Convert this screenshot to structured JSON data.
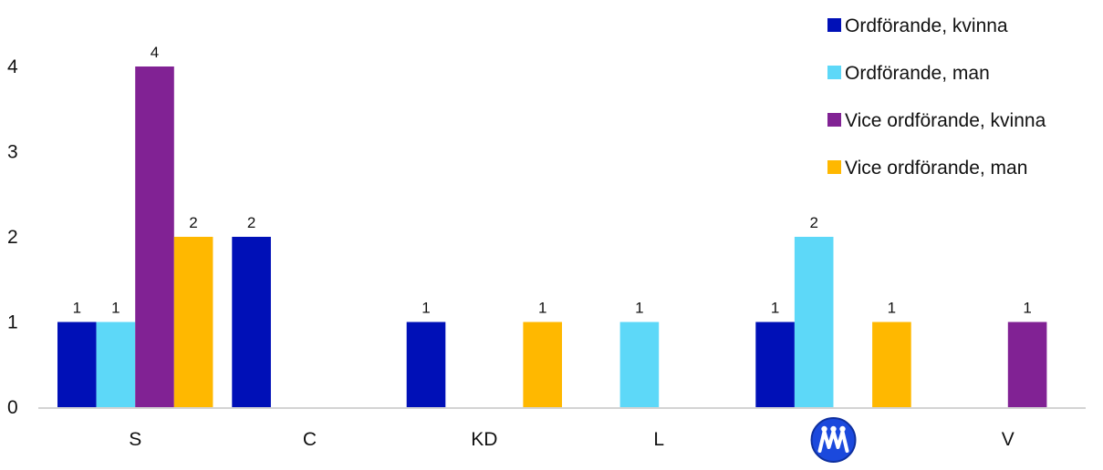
{
  "chart_data": {
    "type": "bar",
    "title": "",
    "xlabel": "",
    "ylabel": "",
    "ylim": [
      0,
      4
    ],
    "yticks": [
      0,
      1,
      2,
      3,
      4
    ],
    "grid": false,
    "legend_position": "top-right",
    "categories": [
      "S",
      "C",
      "KD",
      "L",
      "M",
      "V"
    ],
    "category_icons": [
      "",
      "",
      "",
      "",
      "moderaterna-logo-icon",
      ""
    ],
    "series": [
      {
        "name": "Ordförande, kvinna",
        "color": "#0010B7",
        "values": [
          1,
          2,
          1,
          0,
          1,
          0
        ]
      },
      {
        "name": "Ordförande, man",
        "color": "#5DD8F8",
        "values": [
          1,
          0,
          0,
          1,
          2,
          0
        ]
      },
      {
        "name": "Vice ordförande, kvinna",
        "color": "#812294",
        "values": [
          4,
          0,
          0,
          0,
          0,
          1
        ]
      },
      {
        "name": "Vice ordförande, man",
        "color": "#FFB800",
        "values": [
          2,
          0,
          1,
          0,
          1,
          0
        ]
      }
    ]
  }
}
